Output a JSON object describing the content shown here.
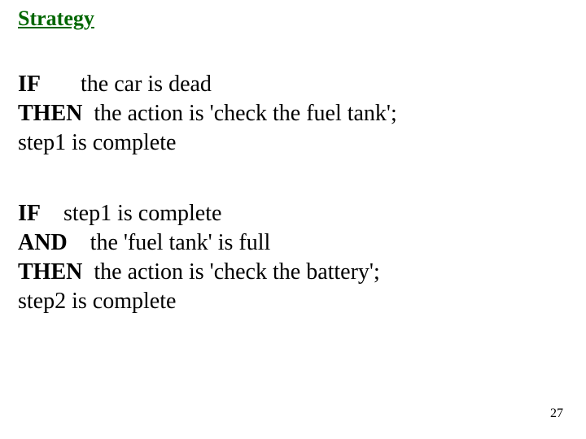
{
  "colors": {
    "heading": "#006600",
    "text": "#000000",
    "background": "#ffffff"
  },
  "typography": {
    "family": "Times New Roman",
    "heading_fontsize": 26,
    "body_fontsize": 28,
    "pagenum_fontsize": 16
  },
  "heading": "Strategy",
  "rule1": {
    "if_kw": "IF",
    "if_cond": "the car is dead",
    "then_kw": "THEN",
    "then_action": "the action is 'check the fuel tank';",
    "result": "step1 is complete"
  },
  "rule2": {
    "if_kw": "IF",
    "if_cond": "step1 is complete",
    "and_kw": "AND",
    "and_cond": "the 'fuel tank' is full",
    "then_kw": "THEN",
    "then_action": "the action is 'check the battery';",
    "result": "step2 is complete"
  },
  "page_number": "27"
}
